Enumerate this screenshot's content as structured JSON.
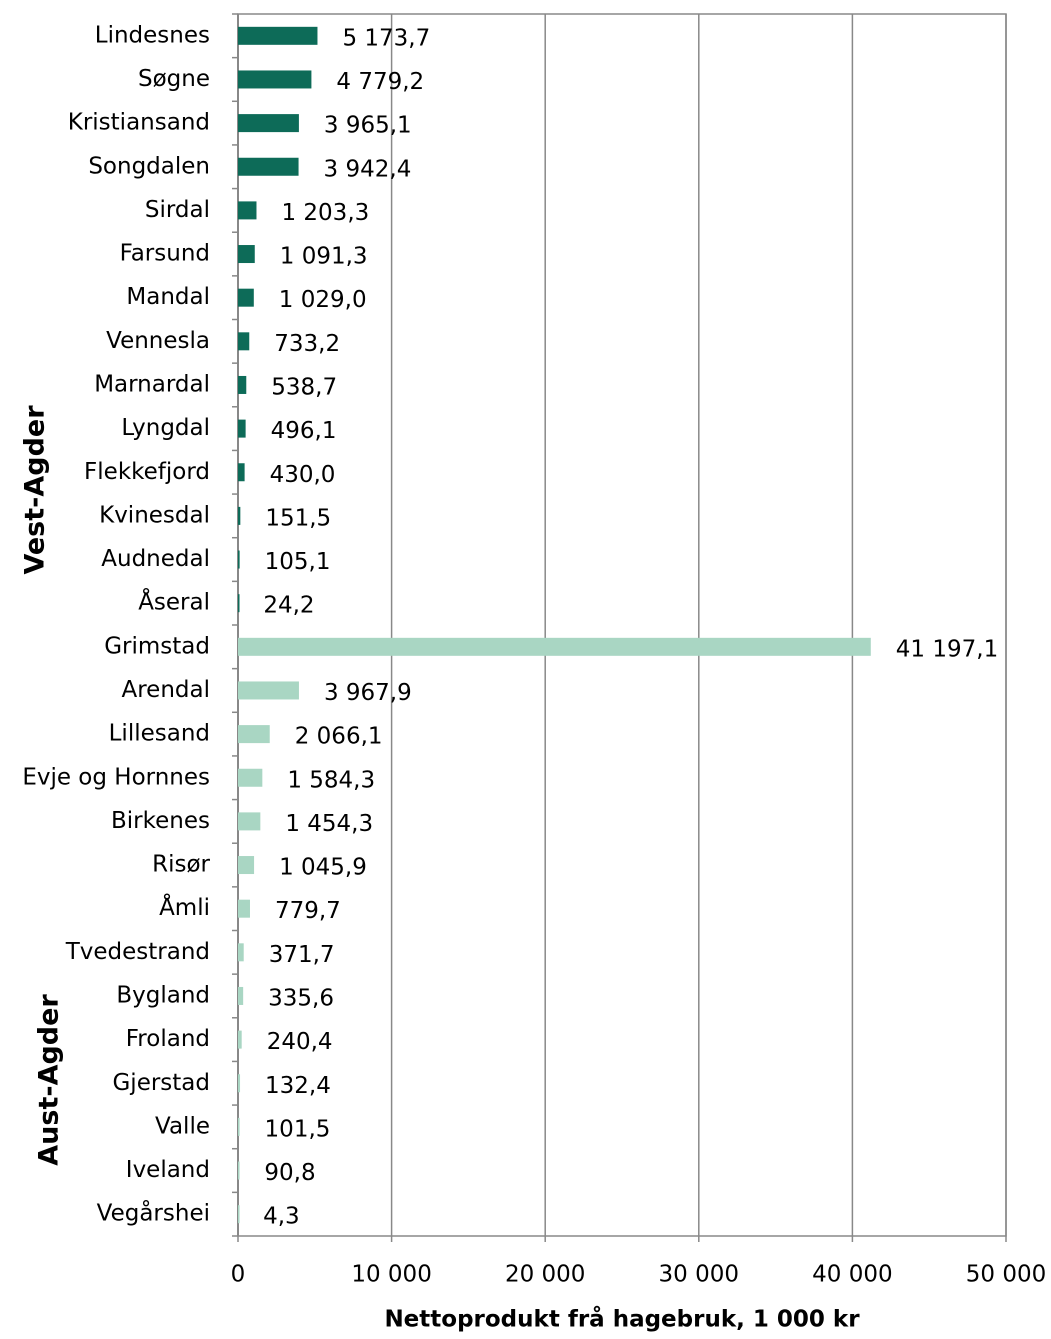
{
  "chart_data": {
    "type": "hbar",
    "xlabel": "Nettoprodukt frå hagebruk, 1 000 kr",
    "categories": [
      "Lindesnes",
      "Søgne",
      "Kristiansand",
      "Songdalen",
      "Sirdal",
      "Farsund",
      "Mandal",
      "Vennesla",
      "Marnardal",
      "Lyngdal",
      "Flekkefjord",
      "Kvinesdal",
      "Audnedal",
      "Åseral",
      "Grimstad",
      "Arendal",
      "Lillesand",
      "Evje og Hornnes",
      "Birkenes",
      "Risør",
      "Åmli",
      "Tvedestrand",
      "Bygland",
      "Froland",
      "Gjerstad",
      "Valle",
      "Iveland",
      "Vegårshei"
    ],
    "series": [
      {
        "name": "Vest-Agder",
        "color": "#0d6b58",
        "values": [
          5173.7,
          4779.2,
          3965.1,
          3942.4,
          1203.3,
          1091.3,
          1029.0,
          733.2,
          538.7,
          496.1,
          430.0,
          151.5,
          105.1,
          24.2,
          null,
          null,
          null,
          null,
          null,
          null,
          null,
          null,
          null,
          null,
          null,
          null,
          null,
          null
        ],
        "value_labels": [
          "5 173,7",
          "4 779,2",
          "3 965,1",
          "3 942,4",
          "1 203,3",
          "1 091,3",
          "1 029,0",
          "733,2",
          "538,7",
          "496,1",
          "430,0",
          "151,5",
          "105,1",
          "24,2",
          null,
          null,
          null,
          null,
          null,
          null,
          null,
          null,
          null,
          null,
          null,
          null,
          null,
          null
        ]
      },
      {
        "name": "Aust-Agder",
        "color": "#a9d6c3",
        "values": [
          null,
          null,
          null,
          null,
          null,
          null,
          null,
          null,
          null,
          null,
          null,
          null,
          null,
          null,
          41197.1,
          3967.9,
          2066.1,
          1584.3,
          1454.3,
          1045.9,
          779.7,
          371.7,
          335.6,
          240.4,
          132.4,
          101.5,
          90.8,
          4.3
        ],
        "value_labels": [
          null,
          null,
          null,
          null,
          null,
          null,
          null,
          null,
          null,
          null,
          null,
          null,
          null,
          null,
          "41 197,1",
          "3 967,9",
          "2 066,1",
          "1 584,3",
          "1 454,3",
          "1 045,9",
          "779,7",
          "371,7",
          "335,6",
          "240,4",
          "132,4",
          "101,5",
          "90,8",
          "4,3"
        ]
      }
    ],
    "xlim": [
      0,
      50000
    ],
    "xticks": [
      0,
      {
        "value": 10000,
        "label": "10 000"
      },
      {
        "value": 20000,
        "label": "20 000"
      },
      {
        "value": 30000,
        "label": "30 000"
      },
      {
        "value": 40000,
        "label": "40 000"
      },
      {
        "value": 50000,
        "label": "50 000"
      }
    ],
    "grid": true
  }
}
